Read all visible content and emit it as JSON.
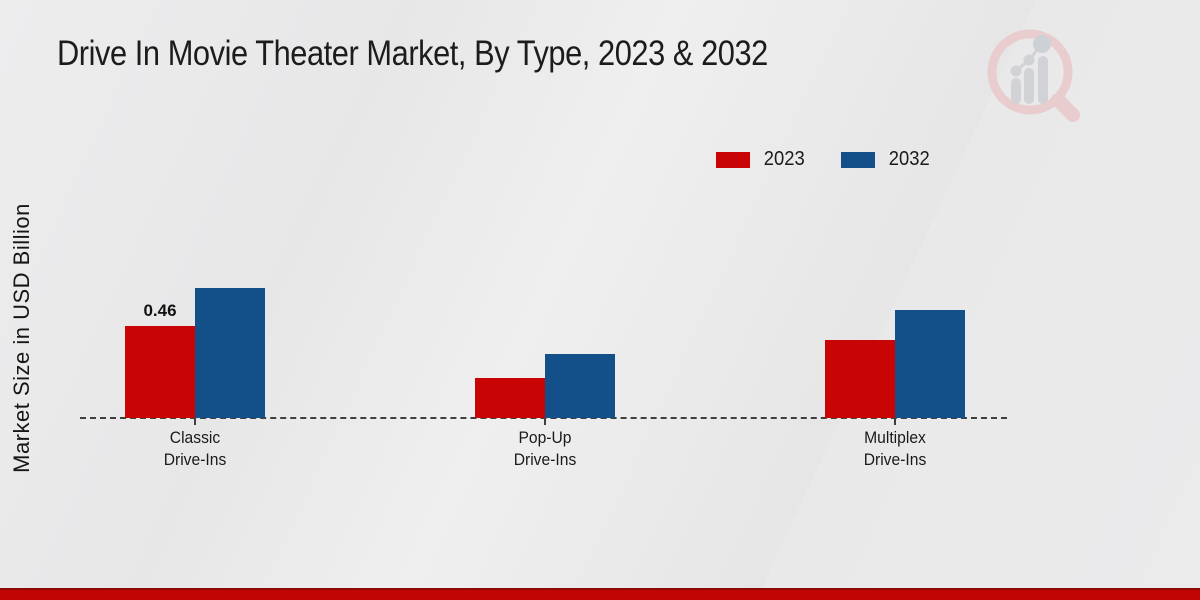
{
  "title": "Drive In Movie Theater Market, By Type, 2023 & 2032",
  "ylabel": "Market Size in USD Billion",
  "colors": {
    "series_2023": "#c90404",
    "series_2032": "#134f88",
    "footer_bar": "#c10404",
    "axis_dash": "#3f3f3f",
    "background": "#e9e9ea"
  },
  "legend": {
    "position": "top-right",
    "items": [
      {
        "label": "2023",
        "color": "#c90404"
      },
      {
        "label": "2032",
        "color": "#134f88"
      }
    ]
  },
  "chart_data": {
    "type": "bar",
    "title": "Drive In Movie Theater Market, By Type, 2023 & 2032",
    "xlabel": "",
    "ylabel": "Market Size in USD Billion",
    "categories": [
      "Classic\nDrive-Ins",
      "Pop-Up\nDrive-Ins",
      "Multiplex\nDrive-Ins"
    ],
    "series": [
      {
        "name": "2023",
        "color": "#c90404",
        "values": [
          0.46,
          0.2,
          0.39
        ],
        "labels": [
          "0.46",
          null,
          null
        ]
      },
      {
        "name": "2032",
        "color": "#134f88",
        "values": [
          0.65,
          0.32,
          0.54
        ],
        "labels": [
          null,
          null,
          null
        ]
      }
    ],
    "ylim": [
      0,
      1.0
    ],
    "grid": false,
    "axis_style": "dashed-zero-line-only",
    "legend_position": "top-right",
    "annotations": [
      "0.46"
    ]
  }
}
